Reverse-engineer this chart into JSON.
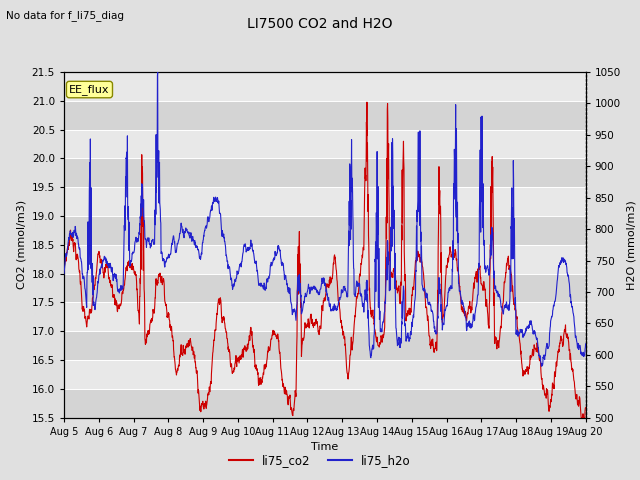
{
  "title": "LI7500 CO2 and H2O",
  "subtitle": "No data for f_li75_diag",
  "xlabel": "Time",
  "ylabel_left": "CO2 (mmol/m3)",
  "ylabel_right": "H2O (mmol/m3)",
  "ylim_left": [
    15.5,
    21.5
  ],
  "ylim_right": [
    500,
    1050
  ],
  "co2_color": "#cc0000",
  "h2o_color": "#2222cc",
  "background_color": "#e0e0e0",
  "plot_bg_color": "#e8e8e8",
  "legend_label_co2": "li75_co2",
  "legend_label_h2o": "li75_h2o",
  "ee_flux_label": "EE_flux",
  "x_tick_labels": [
    "Aug 5",
    "Aug 6",
    "Aug 7",
    "Aug 8",
    "Aug 9",
    "Aug 10",
    "Aug 11",
    "Aug 12",
    "Aug 13",
    "Aug 14",
    "Aug 15",
    "Aug 16",
    "Aug 17",
    "Aug 18",
    "Aug 19",
    "Aug 20"
  ],
  "n_points": 2000,
  "date_start": 5,
  "date_end": 20,
  "seed": 7
}
